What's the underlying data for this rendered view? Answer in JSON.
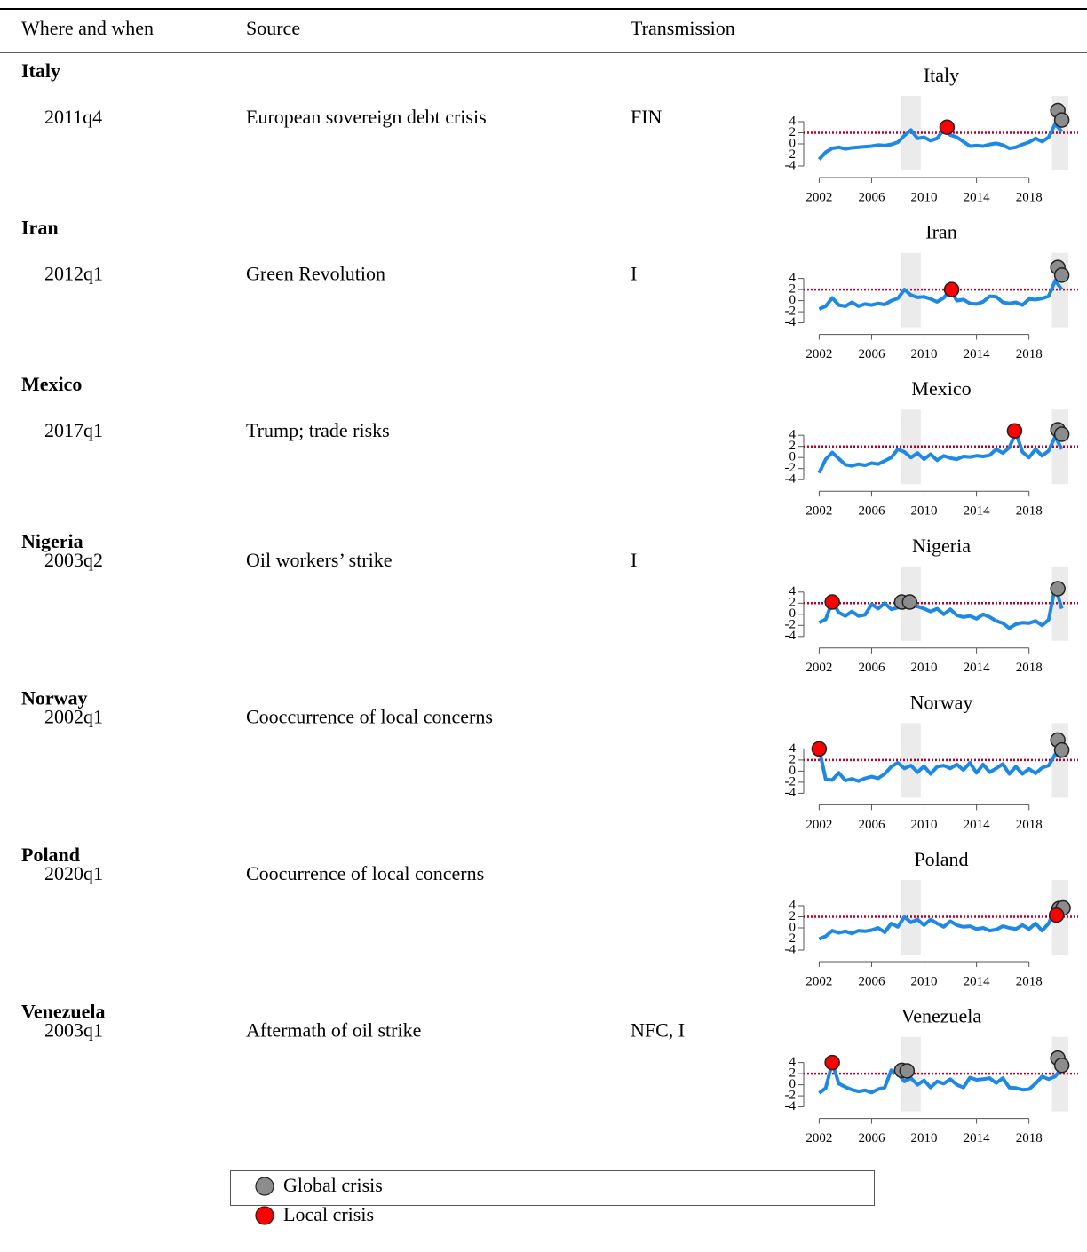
{
  "table": {
    "columns": [
      "Where and when",
      "Source",
      "Transmission"
    ],
    "rows": [
      {
        "country": "Italy",
        "when": "2011q4",
        "source": "European sovereign debt crisis",
        "transmission": "FIN"
      },
      {
        "country": "Iran",
        "when": "2012q1",
        "source": "Green Revolution",
        "transmission": "I"
      },
      {
        "country": "Mexico",
        "when": "2017q1",
        "source": "Trump; trade risks"
      },
      {
        "country": "Nigeria",
        "when": "2003q2",
        "source": "Oil workers’ strike",
        "transmission": "I"
      },
      {
        "country": "Norway",
        "when": "2002q1",
        "source": "Cooccurrence of local concerns"
      },
      {
        "country": "Poland",
        "when": "2020q1",
        "source": "Coocurrence of local concerns"
      },
      {
        "country": "Venezuela",
        "when": "2003q1",
        "source": "Aftermath of oil strike",
        "transmission": "NFC, I"
      }
    ]
  },
  "legend": [
    {
      "label": "Global crisis",
      "color": "#8c8c8c"
    },
    {
      "label": "Local crisis",
      "color": "#ff0000"
    }
  ],
  "chart_data": [
    {
      "type": "line",
      "title": "Italy",
      "xlim": [
        2001.5,
        2021
      ],
      "ylim": [
        -4,
        4
      ],
      "xticks": [
        2002,
        2006,
        2010,
        2014,
        2018
      ],
      "yticks": [
        -4,
        -2,
        0,
        2,
        4
      ],
      "threshold": 2,
      "shaded_periods": [
        [
          2008.25,
          2009.75
        ],
        [
          2019.75,
          2021
        ]
      ],
      "x": [
        2002,
        2002.5,
        2003,
        2003.5,
        2004,
        2004.5,
        2005,
        2005.5,
        2006,
        2006.5,
        2007,
        2007.5,
        2008,
        2008.5,
        2009,
        2009.5,
        2010,
        2010.5,
        2011,
        2011.5,
        2012,
        2012.5,
        2013,
        2013.5,
        2014,
        2014.5,
        2015,
        2015.5,
        2016,
        2016.5,
        2017,
        2017.5,
        2018,
        2018.5,
        2019,
        2019.5,
        2020,
        2020.5
      ],
      "series": [
        {
          "color": "#1e88e5",
          "values": [
            -2.8,
            -1.5,
            -0.8,
            -0.6,
            -0.9,
            -0.7,
            -0.6,
            -0.5,
            -0.4,
            -0.2,
            -0.3,
            -0.1,
            0.3,
            1.5,
            2.5,
            1.0,
            1.2,
            0.6,
            1.0,
            2.6,
            1.6,
            1.2,
            0.4,
            -0.4,
            -0.3,
            -0.4,
            -0.1,
            0.1,
            -0.2,
            -0.8,
            -0.6,
            -0.1,
            0.3,
            1.0,
            0.4,
            1.2,
            3.6,
            2.2
          ]
        }
      ],
      "global_crisis": {
        "x": [
          2020.2,
          2020.5
        ],
        "y": [
          6.0,
          4.3
        ]
      },
      "local_crisis": {
        "x": [
          2011.75
        ],
        "y": [
          3.0
        ]
      }
    },
    {
      "type": "line",
      "title": "Iran",
      "xlim": [
        2001.5,
        2021
      ],
      "ylim": [
        -4,
        4
      ],
      "xticks": [
        2002,
        2006,
        2010,
        2014,
        2018
      ],
      "yticks": [
        -4,
        -2,
        0,
        2,
        4
      ],
      "threshold": 2,
      "shaded_periods": [
        [
          2008.25,
          2009.75
        ],
        [
          2019.75,
          2021
        ]
      ],
      "x": [
        2002,
        2002.5,
        2003,
        2003.5,
        2004,
        2004.5,
        2005,
        2005.5,
        2006,
        2006.5,
        2007,
        2007.5,
        2008,
        2008.5,
        2009,
        2009.5,
        2010,
        2010.5,
        2011,
        2011.5,
        2012,
        2012.5,
        2013,
        2013.5,
        2014,
        2014.5,
        2015,
        2015.5,
        2016,
        2016.5,
        2017,
        2017.5,
        2018,
        2018.5,
        2019,
        2019.5,
        2020,
        2020.5
      ],
      "series": [
        {
          "color": "#1e88e5",
          "values": [
            -1.5,
            -1.0,
            0.5,
            -0.8,
            -1.0,
            -0.3,
            -1.0,
            -0.6,
            -0.8,
            -0.5,
            -0.7,
            0.0,
            0.4,
            2.0,
            1.0,
            0.6,
            0.7,
            0.3,
            -0.2,
            0.5,
            2.0,
            0.0,
            0.2,
            -0.5,
            -0.6,
            -0.2,
            0.8,
            0.7,
            -0.3,
            -0.5,
            -0.3,
            -0.8,
            0.3,
            0.2,
            0.4,
            0.8,
            3.6,
            2.0
          ]
        }
      ],
      "global_crisis": {
        "x": [
          2020.2,
          2020.5
        ],
        "y": [
          6.0,
          4.6
        ]
      },
      "local_crisis": {
        "x": [
          2012.1
        ],
        "y": [
          2.0
        ]
      }
    },
    {
      "type": "line",
      "title": "Mexico",
      "xlim": [
        2001.5,
        2021
      ],
      "ylim": [
        -4,
        4
      ],
      "xticks": [
        2002,
        2006,
        2010,
        2014,
        2018
      ],
      "yticks": [
        -4,
        -2,
        0,
        2,
        4
      ],
      "threshold": 2,
      "shaded_periods": [
        [
          2008.25,
          2009.75
        ],
        [
          2019.75,
          2021
        ]
      ],
      "x": [
        2002,
        2002.5,
        2003,
        2003.5,
        2004,
        2004.5,
        2005,
        2005.5,
        2006,
        2006.5,
        2007,
        2007.5,
        2008,
        2008.5,
        2009,
        2009.5,
        2010,
        2010.5,
        2011,
        2011.5,
        2012,
        2012.5,
        2013,
        2013.5,
        2014,
        2014.5,
        2015,
        2015.5,
        2016,
        2016.5,
        2017,
        2017.5,
        2018,
        2018.5,
        2019,
        2019.5,
        2020,
        2020.5
      ],
      "series": [
        {
          "color": "#1e88e5",
          "values": [
            -2.8,
            -0.3,
            0.9,
            -0.2,
            -1.3,
            -1.5,
            -1.2,
            -1.4,
            -1.0,
            -1.2,
            -0.6,
            0.0,
            1.5,
            1.0,
            0.0,
            0.8,
            -0.3,
            0.6,
            -0.5,
            0.3,
            -0.1,
            -0.3,
            0.2,
            0.1,
            0.3,
            0.2,
            0.4,
            1.5,
            0.8,
            1.8,
            4.5,
            1.0,
            0.0,
            1.5,
            0.3,
            1.2,
            3.8,
            1.5
          ]
        }
      ],
      "global_crisis": {
        "x": [
          2020.2,
          2020.5
        ],
        "y": [
          5.0,
          4.2
        ]
      },
      "local_crisis": {
        "x": [
          2016.9
        ],
        "y": [
          4.8
        ]
      }
    },
    {
      "type": "line",
      "title": "Nigeria",
      "xlim": [
        2001.5,
        2021
      ],
      "ylim": [
        -4,
        4
      ],
      "xticks": [
        2002,
        2006,
        2010,
        2014,
        2018
      ],
      "yticks": [
        -4,
        -2,
        0,
        2,
        4
      ],
      "threshold": 2,
      "shaded_periods": [
        [
          2008.25,
          2009.75
        ],
        [
          2019.75,
          2021
        ]
      ],
      "x": [
        2002,
        2002.5,
        2003,
        2003.5,
        2004,
        2004.5,
        2005,
        2005.5,
        2006,
        2006.5,
        2007,
        2007.5,
        2008,
        2008.5,
        2009,
        2009.5,
        2010,
        2010.5,
        2011,
        2011.5,
        2012,
        2012.5,
        2013,
        2013.5,
        2014,
        2014.5,
        2015,
        2015.5,
        2016,
        2016.5,
        2017,
        2017.5,
        2018,
        2018.5,
        2019,
        2019.5,
        2020,
        2020.5
      ],
      "series": [
        {
          "color": "#1e88e5",
          "values": [
            -1.5,
            -0.9,
            2.3,
            0.3,
            -0.3,
            0.5,
            -0.3,
            -0.1,
            1.8,
            1.0,
            2.0,
            0.9,
            1.2,
            2.1,
            1.6,
            1.4,
            1.0,
            0.5,
            1.0,
            0.0,
            0.9,
            -0.2,
            -0.5,
            -0.3,
            -0.8,
            0.0,
            -0.5,
            -1.2,
            -1.6,
            -2.5,
            -1.8,
            -1.5,
            -1.6,
            -1.2,
            -2.0,
            -1.0,
            5.0,
            1.0
          ]
        }
      ],
      "global_crisis": {
        "x": [
          2008.3,
          2008.9,
          2020.2
        ],
        "y": [
          2.2,
          2.2,
          4.6
        ]
      },
      "local_crisis": {
        "x": [
          2003.0
        ],
        "y": [
          2.2
        ]
      }
    },
    {
      "type": "line",
      "title": "Norway",
      "xlim": [
        2001.5,
        2021
      ],
      "ylim": [
        -4,
        4
      ],
      "xticks": [
        2002,
        2006,
        2010,
        2014,
        2018
      ],
      "yticks": [
        -4,
        -2,
        0,
        2,
        4
      ],
      "threshold": 2,
      "shaded_periods": [
        [
          2008.25,
          2009.75
        ],
        [
          2019.75,
          2021
        ]
      ],
      "x": [
        2002,
        2002.5,
        2003,
        2003.5,
        2004,
        2004.5,
        2005,
        2005.5,
        2006,
        2006.5,
        2007,
        2007.5,
        2008,
        2008.5,
        2009,
        2009.5,
        2010,
        2010.5,
        2011,
        2011.5,
        2012,
        2012.5,
        2013,
        2013.5,
        2014,
        2014.5,
        2015,
        2015.5,
        2016,
        2016.5,
        2017,
        2017.5,
        2018,
        2018.5,
        2019,
        2019.5,
        2020,
        2020.5
      ],
      "series": [
        {
          "color": "#1e88e5",
          "values": [
            4.0,
            -1.5,
            -1.6,
            -0.3,
            -1.7,
            -1.4,
            -1.8,
            -1.3,
            -1.0,
            -1.3,
            -0.5,
            0.8,
            1.5,
            0.5,
            1.0,
            -0.2,
            0.9,
            -0.5,
            0.8,
            1.0,
            0.5,
            1.2,
            0.2,
            1.5,
            -0.3,
            1.2,
            -0.2,
            0.5,
            1.3,
            -0.5,
            0.8,
            -0.5,
            0.4,
            -0.4,
            0.6,
            1.0,
            3.0,
            2.5
          ]
        }
      ],
      "global_crisis": {
        "x": [
          2020.2,
          2020.5
        ],
        "y": [
          5.6,
          3.8
        ]
      },
      "local_crisis": {
        "x": [
          2002.0
        ],
        "y": [
          4.0
        ]
      }
    },
    {
      "type": "line",
      "title": "Poland",
      "xlim": [
        2001.5,
        2021
      ],
      "ylim": [
        -4,
        4
      ],
      "xticks": [
        2002,
        2006,
        2010,
        2014,
        2018
      ],
      "yticks": [
        -4,
        -2,
        0,
        2,
        4
      ],
      "threshold": 2,
      "shaded_periods": [
        [
          2008.25,
          2009.75
        ],
        [
          2019.75,
          2021
        ]
      ],
      "x": [
        2002,
        2002.5,
        2003,
        2003.5,
        2004,
        2004.5,
        2005,
        2005.5,
        2006,
        2006.5,
        2007,
        2007.5,
        2008,
        2008.5,
        2009,
        2009.5,
        2010,
        2010.5,
        2011,
        2011.5,
        2012,
        2012.5,
        2013,
        2013.5,
        2014,
        2014.5,
        2015,
        2015.5,
        2016,
        2016.5,
        2017,
        2017.5,
        2018,
        2018.5,
        2019,
        2019.5,
        2020,
        2020.5
      ],
      "series": [
        {
          "color": "#1e88e5",
          "values": [
            -2.0,
            -1.5,
            -0.5,
            -0.9,
            -0.6,
            -1.0,
            -0.5,
            -0.6,
            -0.4,
            0.0,
            -0.8,
            0.8,
            0.2,
            2.0,
            1.0,
            1.5,
            0.5,
            1.5,
            0.8,
            0.2,
            1.2,
            0.5,
            0.2,
            0.3,
            -0.2,
            0.0,
            -0.5,
            -0.3,
            0.3,
            0.0,
            -0.2,
            0.5,
            -0.2,
            0.8,
            -0.5,
            0.8,
            3.5,
            2.2
          ]
        }
      ],
      "global_crisis": {
        "x": [
          2020.3,
          2020.6
        ],
        "y": [
          3.5,
          3.6
        ]
      },
      "local_crisis": {
        "x": [
          2020.1
        ],
        "y": [
          2.3
        ]
      }
    },
    {
      "type": "line",
      "title": "Venezuela",
      "xlim": [
        2001.5,
        2021
      ],
      "ylim": [
        -4,
        4
      ],
      "xticks": [
        2002,
        2006,
        2010,
        2014,
        2018
      ],
      "yticks": [
        -4,
        -2,
        0,
        2,
        4
      ],
      "threshold": 2,
      "shaded_periods": [
        [
          2008.25,
          2009.75
        ],
        [
          2019.75,
          2021
        ]
      ],
      "x": [
        2002,
        2002.5,
        2003,
        2003.5,
        2004,
        2004.5,
        2005,
        2005.5,
        2006,
        2006.5,
        2007,
        2007.5,
        2008,
        2008.5,
        2009,
        2009.5,
        2010,
        2010.5,
        2011,
        2011.5,
        2012,
        2012.5,
        2013,
        2013.5,
        2014,
        2014.5,
        2015,
        2015.5,
        2016,
        2016.5,
        2017,
        2017.5,
        2018,
        2018.5,
        2019,
        2019.5,
        2020,
        2020.5
      ],
      "series": [
        {
          "color": "#1e88e5",
          "values": [
            -1.5,
            -0.6,
            4.0,
            0.2,
            -0.4,
            -0.9,
            -1.2,
            -1.0,
            -1.4,
            -0.8,
            -0.5,
            2.6,
            2.0,
            0.6,
            1.2,
            0.0,
            0.8,
            -0.5,
            0.6,
            0.2,
            1.0,
            0.0,
            -0.5,
            1.3,
            0.9,
            1.0,
            1.2,
            0.3,
            1.2,
            -0.5,
            -0.6,
            -0.9,
            -0.8,
            0.2,
            1.5,
            1.0,
            1.5,
            3.0
          ]
        }
      ],
      "global_crisis": {
        "x": [
          2008.3,
          2008.7,
          2020.2,
          2020.5
        ],
        "y": [
          2.6,
          2.5,
          4.8,
          3.5
        ]
      },
      "local_crisis": {
        "x": [
          2003.0
        ],
        "y": [
          4.0
        ]
      }
    }
  ]
}
